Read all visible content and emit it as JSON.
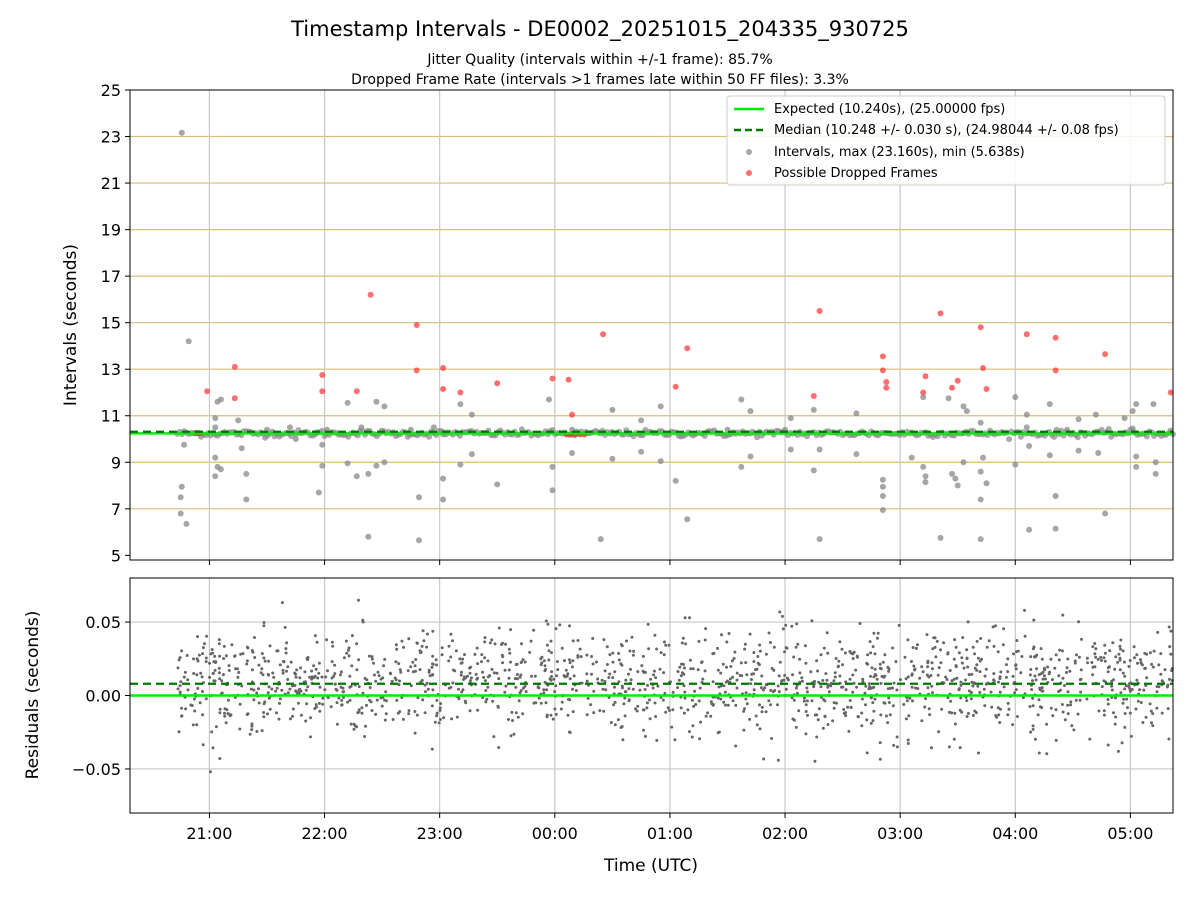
{
  "colors": {
    "expected": "#00ee00",
    "median": "#007700",
    "intervals": "#888888",
    "dropped": "#ff2222",
    "residuals": "#666666",
    "gridline_top": "#d9be74",
    "gridline_vertical": "#c8c8c8"
  },
  "header": {
    "title": "Timestamp Intervals - DE0002_20251015_204335_930725",
    "subtitle_1": "Jitter Quality (intervals within +/-1 frame): 85.7%",
    "subtitle_2": "Dropped Frame Rate (intervals >1 frames late within 50 FF files): 3.3%"
  },
  "chart_data": [
    {
      "type": "scatter",
      "name": "intervals-panel",
      "ylabel": "Intervals (seconds)",
      "xlabel": "",
      "x_unit": "hours since 00:00 UTC (negative = previous day)",
      "xlim": [
        -3.69,
        5.37
      ],
      "ylim": [
        4.8,
        25
      ],
      "yticks": [
        5,
        7,
        9,
        11,
        13,
        15,
        17,
        19,
        21,
        23,
        25
      ],
      "ytick_labels": [
        "5",
        "7",
        "9",
        "11",
        "13",
        "15",
        "17",
        "19",
        "21",
        "23",
        "25"
      ],
      "grid": "horizontal lines at odd seconds and vertical lines at each hour",
      "legend_position": "top-right",
      "legend": [
        {
          "key": "expected",
          "label": "Expected (10.240s), (25.00000 fps)"
        },
        {
          "key": "median",
          "label": "Median (10.248 +/- 0.030 s), (24.98044 +/- 0.08 fps)"
        },
        {
          "key": "intervals",
          "label": "Intervals, max (23.160s), min (5.638s)"
        },
        {
          "key": "dropped",
          "label": "Possible Dropped Frames"
        }
      ],
      "expected_line": 10.24,
      "median_line": 10.248,
      "baseline_series": {
        "y": 10.24,
        "x_start": -3.28,
        "x_end": 5.37,
        "note": "dense band of intervals near expected value"
      },
      "intervals_points": [
        [
          -3.24,
          23.16
        ],
        [
          -3.18,
          14.2
        ],
        [
          -3.24,
          7.95
        ],
        [
          -3.25,
          7.5
        ],
        [
          -3.25,
          6.8
        ],
        [
          -3.2,
          6.35
        ],
        [
          -3.22,
          9.75
        ],
        [
          -2.95,
          10.9
        ],
        [
          -2.95,
          9.2
        ],
        [
          -2.93,
          8.8
        ],
        [
          -2.95,
          8.4
        ],
        [
          -2.9,
          8.7
        ],
        [
          -2.9,
          11.7
        ],
        [
          -2.93,
          11.6
        ],
        [
          -2.95,
          10.5
        ],
        [
          -2.75,
          10.8
        ],
        [
          -2.72,
          9.6
        ],
        [
          -2.68,
          8.5
        ],
        [
          -2.68,
          7.4
        ],
        [
          -2.5,
          10.4
        ],
        [
          -2.3,
          10.5
        ],
        [
          -2.25,
          10.0
        ],
        [
          -2.08,
          10.2
        ],
        [
          -2.02,
          9.75
        ],
        [
          -2.02,
          8.85
        ],
        [
          -2.05,
          7.7
        ],
        [
          -1.98,
          10.4
        ],
        [
          -1.8,
          11.55
        ],
        [
          -1.8,
          8.95
        ],
        [
          -1.72,
          8.4
        ],
        [
          -1.68,
          10.5
        ],
        [
          -1.62,
          8.5
        ],
        [
          -1.62,
          5.8
        ],
        [
          -1.55,
          8.85
        ],
        [
          -1.55,
          11.6
        ],
        [
          -1.48,
          11.4
        ],
        [
          -1.48,
          9.0
        ],
        [
          -1.25,
          10.4
        ],
        [
          -1.18,
          7.5
        ],
        [
          -1.18,
          5.65
        ],
        [
          -1.05,
          10.5
        ],
        [
          -0.97,
          10.2
        ],
        [
          -0.97,
          8.3
        ],
        [
          -0.97,
          7.4
        ],
        [
          -0.82,
          11.5
        ],
        [
          -0.82,
          8.9
        ],
        [
          -0.72,
          11.05
        ],
        [
          -0.72,
          9.35
        ],
        [
          -0.5,
          8.05
        ],
        [
          -0.05,
          11.7
        ],
        [
          -0.02,
          8.8
        ],
        [
          -0.02,
          7.8
        ],
        [
          0.15,
          10.4
        ],
        [
          0.15,
          9.4
        ],
        [
          0.4,
          5.7
        ],
        [
          0.5,
          11.25
        ],
        [
          0.5,
          9.15
        ],
        [
          0.75,
          10.8
        ],
        [
          0.75,
          9.45
        ],
        [
          0.92,
          11.4
        ],
        [
          0.92,
          9.05
        ],
        [
          1.05,
          8.2
        ],
        [
          1.15,
          6.55
        ],
        [
          1.5,
          10.4
        ],
        [
          1.62,
          11.7
        ],
        [
          1.62,
          8.8
        ],
        [
          1.7,
          11.2
        ],
        [
          1.7,
          9.25
        ],
        [
          2.0,
          10.4
        ],
        [
          2.05,
          10.9
        ],
        [
          2.05,
          9.55
        ],
        [
          2.25,
          11.25
        ],
        [
          2.25,
          8.65
        ],
        [
          2.3,
          9.55
        ],
        [
          2.3,
          5.7
        ],
        [
          2.62,
          11.1
        ],
        [
          2.62,
          9.35
        ],
        [
          2.85,
          8.25
        ],
        [
          2.85,
          7.95
        ],
        [
          2.85,
          7.55
        ],
        [
          2.85,
          6.95
        ],
        [
          3.1,
          9.2
        ],
        [
          3.2,
          11.8
        ],
        [
          3.2,
          8.8
        ],
        [
          3.22,
          8.4
        ],
        [
          3.22,
          8.15
        ],
        [
          3.35,
          5.75
        ],
        [
          3.42,
          11.75
        ],
        [
          3.45,
          8.5
        ],
        [
          3.48,
          8.3
        ],
        [
          3.5,
          8.0
        ],
        [
          3.55,
          11.4
        ],
        [
          3.55,
          9.0
        ],
        [
          3.58,
          11.2
        ],
        [
          3.7,
          10.7
        ],
        [
          3.7,
          8.6
        ],
        [
          3.7,
          7.4
        ],
        [
          3.7,
          5.7
        ],
        [
          3.72,
          9.2
        ],
        [
          3.75,
          8.1
        ],
        [
          4.0,
          11.8
        ],
        [
          4.0,
          8.9
        ],
        [
          4.1,
          11.05
        ],
        [
          4.1,
          10.5
        ],
        [
          4.12,
          9.7
        ],
        [
          4.12,
          6.1
        ],
        [
          4.3,
          11.5
        ],
        [
          4.3,
          9.3
        ],
        [
          4.35,
          7.55
        ],
        [
          4.35,
          6.15
        ],
        [
          4.45,
          10.4
        ],
        [
          4.55,
          9.5
        ],
        [
          4.55,
          10.85
        ],
        [
          4.7,
          11.05
        ],
        [
          4.72,
          9.4
        ],
        [
          4.78,
          6.8
        ],
        [
          4.95,
          10.9
        ],
        [
          5.02,
          10.45
        ],
        [
          5.02,
          11.2
        ],
        [
          5.05,
          11.5
        ],
        [
          5.05,
          9.25
        ],
        [
          5.05,
          8.8
        ],
        [
          5.2,
          11.5
        ],
        [
          5.22,
          9.0
        ],
        [
          5.22,
          8.5
        ]
      ],
      "dropped_points": [
        [
          -3.1,
          10.25
        ],
        [
          -3.12,
          10.25
        ],
        [
          -3.08,
          10.25
        ],
        [
          -3.02,
          12.05
        ],
        [
          -2.78,
          13.1
        ],
        [
          -2.78,
          11.75
        ],
        [
          -2.02,
          12.75
        ],
        [
          -2.02,
          12.05
        ],
        [
          -1.72,
          12.05
        ],
        [
          -1.6,
          16.2
        ],
        [
          -1.2,
          14.9
        ],
        [
          -1.2,
          12.95
        ],
        [
          -0.97,
          13.05
        ],
        [
          -0.97,
          12.15
        ],
        [
          -0.82,
          12.0
        ],
        [
          -0.5,
          12.4
        ],
        [
          -0.02,
          12.6
        ],
        [
          0.12,
          12.55
        ],
        [
          0.15,
          11.05
        ],
        [
          0.1,
          10.2
        ],
        [
          0.14,
          10.2
        ],
        [
          0.18,
          10.2
        ],
        [
          0.22,
          10.2
        ],
        [
          0.26,
          10.2
        ],
        [
          0.42,
          14.5
        ],
        [
          1.05,
          12.25
        ],
        [
          1.15,
          13.9
        ],
        [
          2.25,
          11.85
        ],
        [
          2.3,
          15.5
        ],
        [
          2.85,
          13.55
        ],
        [
          2.85,
          12.95
        ],
        [
          2.88,
          12.45
        ],
        [
          2.88,
          12.2
        ],
        [
          3.2,
          12.0
        ],
        [
          3.22,
          12.7
        ],
        [
          3.35,
          15.4
        ],
        [
          3.45,
          12.2
        ],
        [
          3.5,
          12.5
        ],
        [
          3.7,
          14.8
        ],
        [
          3.72,
          13.05
        ],
        [
          3.75,
          12.15
        ],
        [
          4.1,
          14.5
        ],
        [
          4.35,
          14.35
        ],
        [
          4.35,
          12.95
        ],
        [
          4.78,
          13.65
        ],
        [
          5.35,
          12.0
        ]
      ]
    },
    {
      "type": "scatter",
      "name": "residuals-panel",
      "ylabel": "Residuals (seconds)",
      "xlabel": "Time (UTC)",
      "xlim": [
        -3.69,
        5.37
      ],
      "ylim": [
        -0.08,
        0.08
      ],
      "yticks": [
        -0.05,
        0.0,
        0.05
      ],
      "ytick_labels": [
        "−0.05",
        "0.00",
        "0.05"
      ],
      "xticks": [
        -3,
        -2,
        -1,
        0,
        1,
        2,
        3,
        4,
        5
      ],
      "xtick_labels": [
        "21:00",
        "22:00",
        "23:00",
        "00:00",
        "01:00",
        "02:00",
        "03:00",
        "04:00",
        "05:00"
      ],
      "expected_line": 0.0,
      "median_line": 0.008,
      "residual_distribution": {
        "x_start": -3.28,
        "x_end": 5.37,
        "count": 1600,
        "center": 0.008,
        "spread": 0.018
      }
    }
  ]
}
